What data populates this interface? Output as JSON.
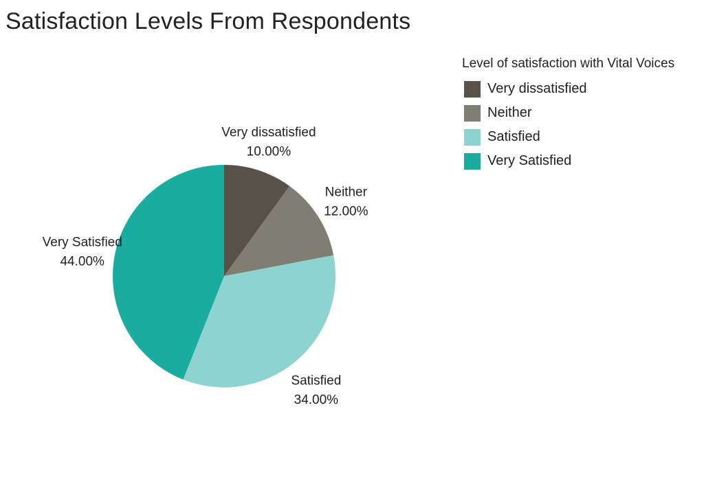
{
  "chart_data": {
    "type": "pie",
    "title": "Satisfaction Levels From Respondents",
    "legend_title": "Level of satisfaction with Vital Voices",
    "legend_placement": "top-right",
    "slices": [
      {
        "label": "Very dissatisfied",
        "value": 10.0,
        "display": "10.00%",
        "color": "#57514a"
      },
      {
        "label": "Neither",
        "value": 12.0,
        "display": "12.00%",
        "color": "#807d72"
      },
      {
        "label": "Satisfied",
        "value": 34.0,
        "display": "34.00%",
        "color": "#8dd3cf"
      },
      {
        "label": "Very Satisfied",
        "value": 44.0,
        "display": "44.00%",
        "color": "#19ac9f"
      }
    ]
  }
}
